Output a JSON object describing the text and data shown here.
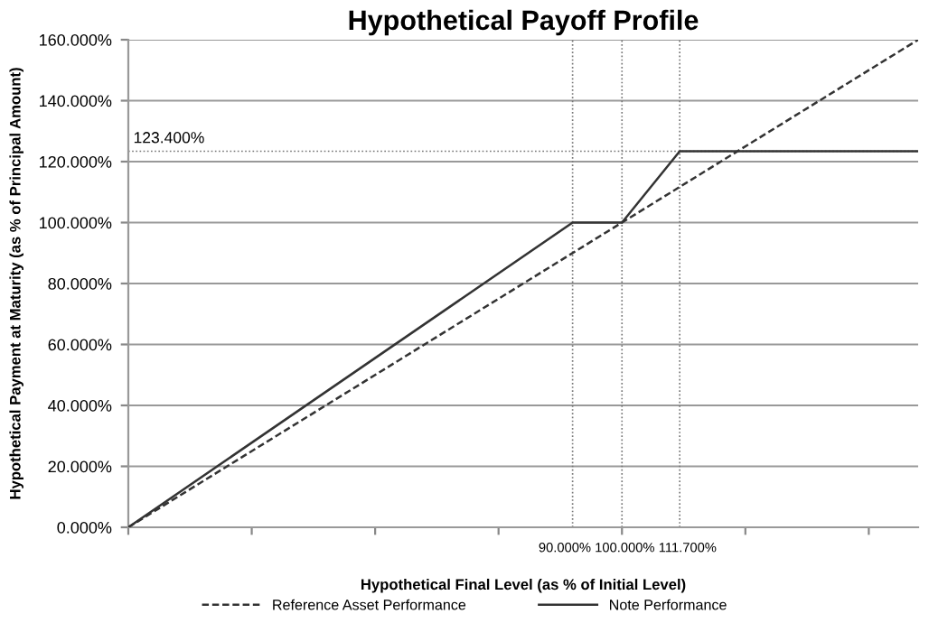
{
  "chart_data": {
    "type": "line",
    "title": "Hypothetical Payoff Profile",
    "xlabel": "Hypothetical Final Level (as % of Initial Level)",
    "ylabel": "Hypothetical Payment at Maturity (as % of Principal Amount)",
    "series": [
      {
        "name": "Reference Asset Performance",
        "color": "#333333",
        "line_style": "dashed",
        "x": [
          0,
          160
        ],
        "values": [
          0,
          160
        ]
      },
      {
        "name": "Note Performance",
        "color": "#333333",
        "line_style": "solid",
        "x": [
          0,
          90,
          100,
          111.7,
          160
        ],
        "values": [
          0,
          100,
          100,
          123.4,
          123.4
        ]
      }
    ],
    "xlim": [
      0,
      160
    ],
    "ylim": [
      0,
      160
    ],
    "xticks": [
      {
        "value": 0,
        "label": null
      },
      {
        "value": 25,
        "label": null
      },
      {
        "value": 50,
        "label": null
      },
      {
        "value": 75,
        "label": null
      },
      {
        "value": 100,
        "label": null
      },
      {
        "value": 125,
        "label": null
      },
      {
        "value": 150,
        "label": null
      }
    ],
    "yticks": [
      {
        "value": 0,
        "label": "0.000%"
      },
      {
        "value": 20,
        "label": "20.000%"
      },
      {
        "value": 40,
        "label": "40.000%"
      },
      {
        "value": 60,
        "label": "60.000%"
      },
      {
        "value": 80,
        "label": "80.000%"
      },
      {
        "value": 100,
        "label": "100.000%"
      },
      {
        "value": 120,
        "label": "120.000%"
      },
      {
        "value": 140,
        "label": "140.000%"
      },
      {
        "value": 160,
        "label": "160.000%"
      }
    ],
    "ref_lines": [
      {
        "axis": "x",
        "value": 90,
        "label": "90.000%",
        "color": "#777777",
        "line_style": "dotted"
      },
      {
        "axis": "x",
        "value": 100,
        "label": "100.000%",
        "color": "#777777",
        "line_style": "dotted"
      },
      {
        "axis": "x",
        "value": 111.7,
        "label": "111.700%",
        "color": "#777777",
        "line_style": "dotted"
      },
      {
        "axis": "y",
        "value": 123.4,
        "label": "123.400%",
        "color": "#777777",
        "line_style": "dotted"
      }
    ],
    "grid": "y",
    "legend": "bottom",
    "marker": "none"
  }
}
